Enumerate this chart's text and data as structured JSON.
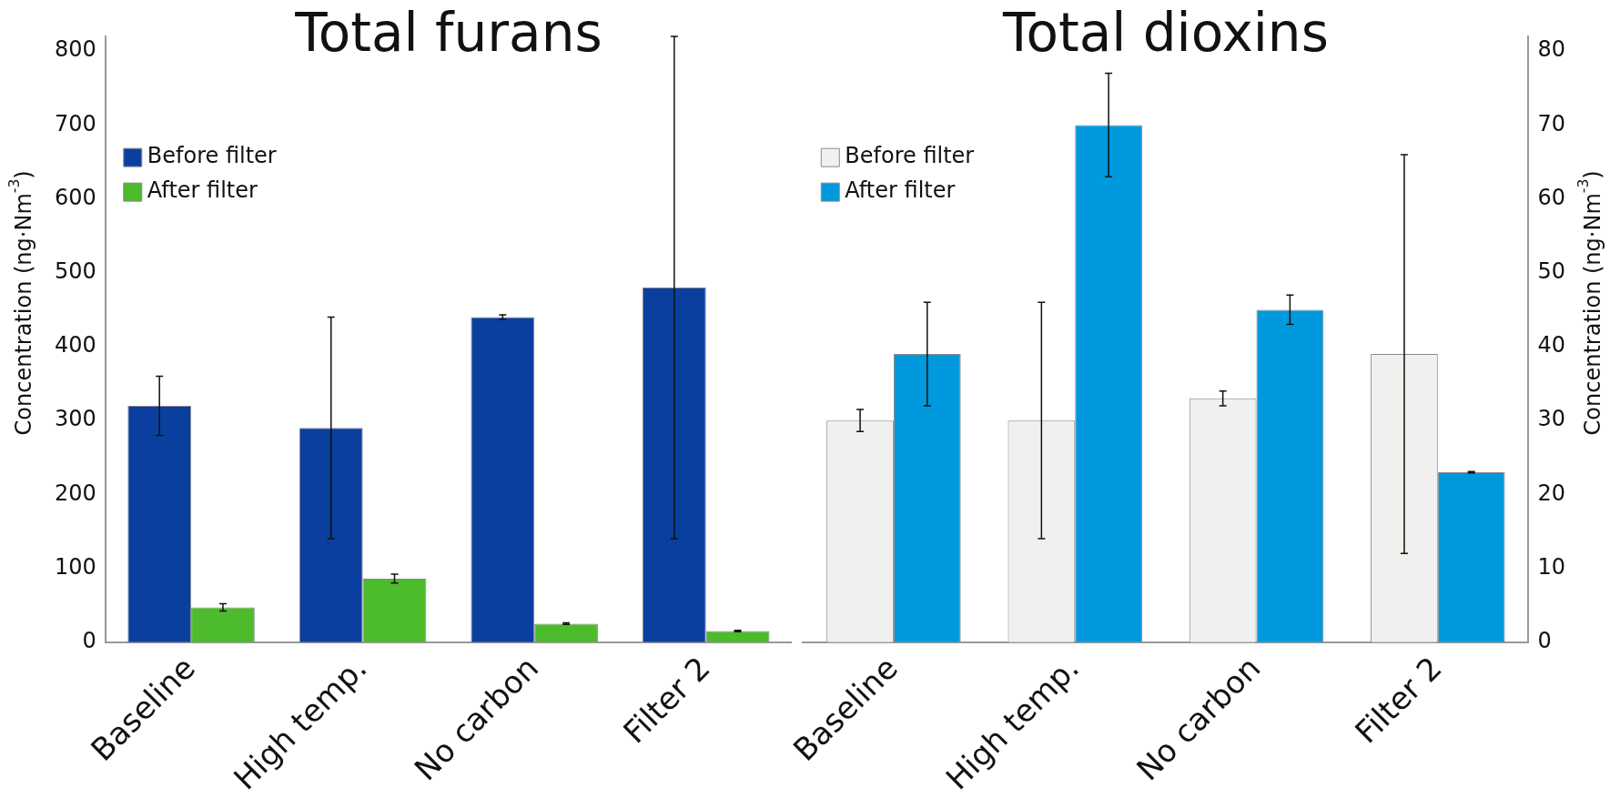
{
  "chart_data": [
    {
      "type": "bar",
      "title": "Total furans",
      "ylabel": "Concentration (ng·Nm$^{-3}$)",
      "categories": [
        "Baseline",
        "High temp.",
        "No carbon",
        "Filter 2"
      ],
      "series": [
        {
          "name": "Before filter",
          "color": "#0a3fa0",
          "values": [
            320,
            290,
            440,
            480
          ],
          "errors": [
            [
              280,
              360
            ],
            [
              140,
              440
            ],
            [
              437,
              443
            ],
            [
              140,
              820
            ]
          ]
        },
        {
          "name": "After filter",
          "color": "#4cbb2c",
          "values": [
            47,
            86,
            25,
            15
          ],
          "errors": [
            [
              42,
              52
            ],
            [
              80,
              92
            ],
            [
              24,
              26
            ],
            [
              14,
              16
            ]
          ]
        }
      ],
      "ylim": [
        0,
        820
      ],
      "yticks": [
        0,
        100,
        200,
        300,
        400,
        500,
        600,
        700,
        800
      ],
      "legend": "top left",
      "grid": false
    },
    {
      "type": "bar",
      "title": "Total dioxins",
      "y2label": "Concentration (ng·Nm$^{-3}$)",
      "categories": [
        "Baseline",
        "High temp.",
        "No carbon",
        "Filter 2"
      ],
      "series": [
        {
          "name": "Before filter",
          "color": "#f0f0ee",
          "axis": "y2",
          "values": [
            30,
            30,
            33,
            39
          ],
          "errors": [
            [
              28.5,
              31.5
            ],
            [
              14,
              46
            ],
            [
              32,
              34
            ],
            [
              12,
              66
            ]
          ]
        },
        {
          "name": "After filter",
          "color": "#0099dd",
          "axis": "y2",
          "values": [
            39,
            70,
            45,
            23
          ],
          "errors": [
            [
              32,
              46
            ],
            [
              63,
              77
            ],
            [
              43,
              47
            ],
            [
              22.9,
              23.1
            ]
          ]
        }
      ],
      "y2lim": [
        0,
        82
      ],
      "y2ticks": [
        0,
        10,
        20,
        30,
        40,
        50,
        60,
        70,
        80
      ],
      "legend": "top left",
      "grid": false
    }
  ]
}
